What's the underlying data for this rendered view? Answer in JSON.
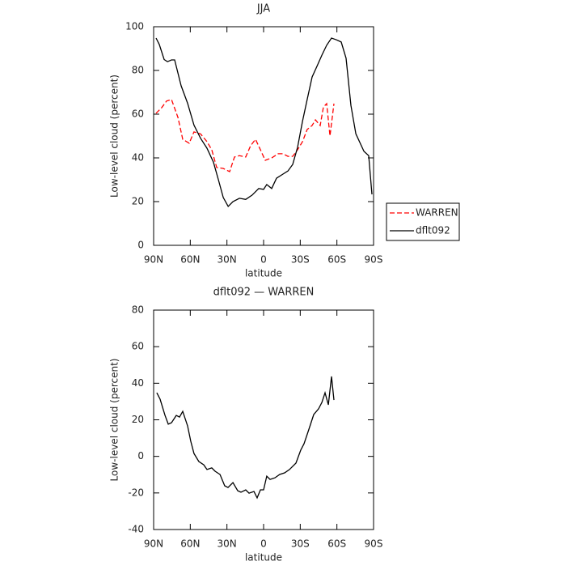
{
  "chart_data": [
    {
      "type": "line",
      "title": "JJA",
      "xlabel": "latitude",
      "ylabel": "Low-level cloud (percent)",
      "xlim": [
        90,
        -90
      ],
      "xticks": [
        {
          "value": 90,
          "label": "90N"
        },
        {
          "value": 60,
          "label": "60N"
        },
        {
          "value": 30,
          "label": "30N"
        },
        0,
        {
          "value": -30,
          "label": "30S"
        },
        {
          "value": -60,
          "label": "60S"
        },
        {
          "value": -90,
          "label": "90S"
        }
      ],
      "ylim": [
        0,
        100
      ],
      "yticks": [
        0,
        20,
        40,
        60,
        80,
        100
      ],
      "legend": "right",
      "series": [
        {
          "name": "WARREN",
          "color": "#ff0000",
          "linestyle": "dashed",
          "x": [
            88,
            83.4,
            79.4,
            75.4,
            70.1,
            66.2,
            60.9,
            57,
            51.6,
            46.3,
            42.4,
            38.4,
            33.1,
            27.8,
            23.8,
            19.8,
            14.6,
            10.6,
            6.6,
            2.6,
            -1.3,
            -6.6,
            -11.9,
            -15.9,
            -19.9,
            -23.8,
            -27.8,
            -31.8,
            -35.7,
            -39.7,
            -42.4,
            -46.3,
            -49,
            -51.6,
            -54.3,
            -57.6
          ],
          "values": [
            60.4,
            63,
            66,
            66.7,
            58.5,
            48.5,
            46.7,
            51.9,
            51,
            47.4,
            43.7,
            35.6,
            35.2,
            33.7,
            40.4,
            41,
            40.4,
            45.6,
            48.5,
            43.7,
            38.9,
            40,
            41.9,
            41.9,
            40.7,
            40.7,
            43.7,
            47.4,
            53,
            54.8,
            57.4,
            54.8,
            63.3,
            64.8,
            50,
            64.8
          ]
        },
        {
          "name": "dflt092",
          "color": "#000000",
          "linestyle": "solid",
          "x": [
            88,
            85.4,
            81.4,
            78.7,
            75.4,
            72.8,
            67.5,
            62.2,
            57,
            51.6,
            46.3,
            41,
            37,
            33,
            29,
            25.1,
            19.8,
            14.6,
            9.3,
            4,
            0,
            -2.6,
            -6.6,
            -10.6,
            -15.9,
            -19.9,
            -23.8,
            -27.8,
            -31.8,
            -35.7,
            -39.7,
            -43.7,
            -47.7,
            -51.6,
            -55.6,
            -59.6,
            -63.5,
            -67.5,
            -71.5,
            -75.5,
            -79.4,
            -82.1,
            -86,
            -88.7
          ],
          "values": [
            94.8,
            91.9,
            85,
            84,
            84.8,
            84.8,
            73,
            65,
            55,
            49,
            44.4,
            38,
            30,
            21.9,
            17.8,
            20,
            21.5,
            21,
            23,
            26,
            25.6,
            27.8,
            26,
            30.7,
            32.6,
            34,
            37,
            44.8,
            56.7,
            66.7,
            77,
            81.9,
            87,
            91.5,
            94.8,
            94,
            93,
            85.6,
            64,
            51,
            46.3,
            43,
            41,
            23.3
          ]
        }
      ]
    },
    {
      "type": "line",
      "title": "dflt092 — WARREN",
      "xlabel": "latitude",
      "ylabel": "Low-level cloud (percent)",
      "xlim": [
        90,
        -90
      ],
      "xticks": [
        {
          "value": 90,
          "label": "90N"
        },
        {
          "value": 60,
          "label": "60N"
        },
        {
          "value": 30,
          "label": "30N"
        },
        0,
        {
          "value": -30,
          "label": "30S"
        },
        {
          "value": -60,
          "label": "60S"
        },
        {
          "value": -90,
          "label": "90S"
        }
      ],
      "ylim": [
        -40,
        80
      ],
      "yticks": [
        -40,
        -20,
        0,
        20,
        40,
        60,
        80
      ],
      "series": [
        {
          "color": "#000000",
          "linestyle": "solid",
          "x": [
            87.4,
            84.7,
            80.7,
            78,
            75.4,
            71.5,
            68.8,
            66.2,
            62.2,
            59.6,
            57,
            53,
            49,
            46.3,
            42.4,
            39.7,
            35.7,
            31.8,
            29.1,
            25.1,
            21.2,
            18.5,
            14.6,
            11.9,
            7.9,
            5.3,
            2.6,
            0,
            -2.6,
            -5.3,
            -9.3,
            -13.2,
            -17.2,
            -21.2,
            -26.5,
            -30.4,
            -33.1,
            -37.1,
            -41,
            -45,
            -47.7,
            -50.3,
            -53,
            -55.6,
            -57.6
          ],
          "values": [
            34.8,
            31.3,
            22.4,
            17.6,
            18.4,
            22.4,
            21.5,
            24.6,
            16.7,
            8.3,
            1.6,
            -2.8,
            -4.6,
            -7.2,
            -6.3,
            -8.1,
            -9.9,
            -16.1,
            -17,
            -14.3,
            -18.8,
            -19.6,
            -18.3,
            -20.1,
            -19.2,
            -22.7,
            -18.3,
            -18.3,
            -10.8,
            -12.6,
            -11.7,
            -9.9,
            -9,
            -7.2,
            -3.7,
            3.4,
            6.9,
            14.9,
            22.9,
            26,
            29.5,
            34.8,
            28.2,
            43.7,
            30.8
          ]
        }
      ]
    }
  ]
}
